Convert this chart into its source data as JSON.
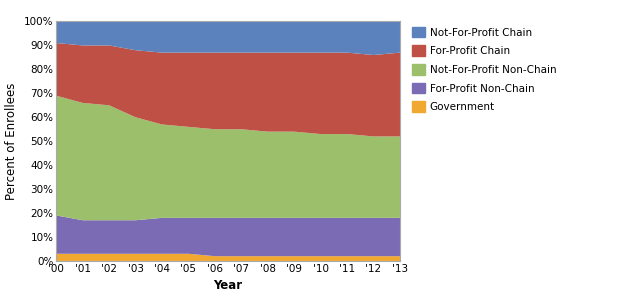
{
  "years": [
    2000,
    2001,
    2002,
    2003,
    2004,
    2005,
    2006,
    2007,
    2008,
    2009,
    2010,
    2011,
    2012,
    2013
  ],
  "year_labels": [
    "'00",
    "'01",
    "'02",
    "'03",
    "'04",
    "'05",
    "'06",
    "'07",
    "'08",
    "'09",
    "'10",
    "'11",
    "'12",
    "'13"
  ],
  "government": [
    3,
    3,
    3,
    3,
    3,
    3,
    2,
    2,
    2,
    2,
    2,
    2,
    2,
    2
  ],
  "fp_nonchain": [
    16,
    14,
    14,
    14,
    15,
    15,
    16,
    16,
    16,
    16,
    16,
    16,
    16,
    16
  ],
  "nfp_nonchain": [
    50,
    49,
    48,
    43,
    39,
    38,
    37,
    37,
    36,
    36,
    35,
    35,
    34,
    34
  ],
  "fp_chain": [
    22,
    24,
    25,
    28,
    30,
    31,
    32,
    32,
    33,
    33,
    34,
    34,
    34,
    35
  ],
  "nfp_chain": [
    9,
    10,
    10,
    12,
    13,
    13,
    13,
    13,
    13,
    13,
    13,
    13,
    14,
    13
  ],
  "colors": {
    "government": "#F0A830",
    "fp_nonchain": "#7B6BB5",
    "nfp_nonchain": "#9BBF6A",
    "fp_chain": "#BE5046",
    "nfp_chain": "#5B82BC"
  },
  "legend_labels": [
    "Not-For-Profit Chain",
    "For-Profit Chain",
    "Not-For-Profit Non-Chain",
    "For-Profit Non-Chain",
    "Government"
  ],
  "ylabel": "Percent of Enrollees",
  "xlabel": "Year",
  "ylim": [
    0,
    100
  ],
  "ytick_vals": [
    0,
    10,
    20,
    30,
    40,
    50,
    60,
    70,
    80,
    90,
    100
  ],
  "ytick_labels": [
    "0%",
    "10%",
    "20%",
    "30%",
    "40%",
    "50%",
    "60%",
    "70%",
    "80%",
    "90%",
    "100%"
  ]
}
